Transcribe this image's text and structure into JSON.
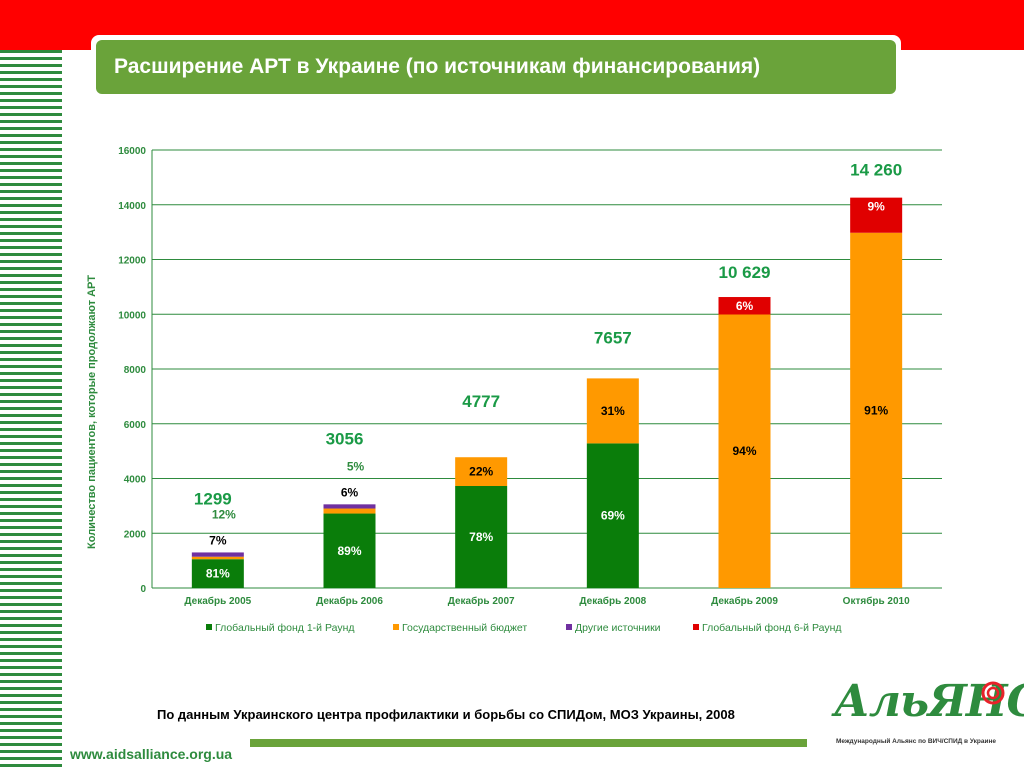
{
  "slide": {
    "title": "Расширение АРТ в Украине (по источникам финансирования)",
    "source": "По данным Украинского центра профилактики и борьбы со СПИДом,  МОЗ Украины, 2008",
    "url": "www.aidsalliance.org.ua",
    "logo_text": "АльЯНС",
    "logo_caption": "Международный Альянс по ВИЧ/СПИД в Украине"
  },
  "colors": {
    "top_bar": "#ff0000",
    "title_bg": "#6aa33a",
    "stripes": "#2e8b3e",
    "axis_text": "#2e8b3e",
    "grid": "#2e8b3e"
  },
  "chart_data": {
    "type": "bar",
    "stacked": true,
    "title": "",
    "ylabel": "Количество пациентов, которые продолжают АРТ",
    "ylim": [
      0,
      16000
    ],
    "yticks": [
      0,
      2000,
      4000,
      6000,
      8000,
      10000,
      12000,
      14000,
      16000
    ],
    "grid": true,
    "legend_position": "bottom",
    "categories": [
      "Декабрь 2005",
      "Декабрь 2006",
      "Декабрь 2007",
      "Декабрь 2008",
      "Декабрь 2009",
      "Октябрь 2010"
    ],
    "totals": [
      "1299",
      "3056",
      "4777",
      "7657",
      "10 629",
      "14 260"
    ],
    "series": [
      {
        "name": "Глобальный фонд 1-й Раунд",
        "color": "#0a7d0a",
        "values": [
          1052,
          2720,
          3726,
          5283,
          0,
          0
        ],
        "labels": [
          "81%",
          "89%",
          "78%",
          "69%",
          "",
          ""
        ]
      },
      {
        "name": "Государственный бюджет",
        "color": "#ff9900",
        "values": [
          91,
          183,
          1051,
          2374,
          9991,
          12977
        ],
        "labels": [
          "7%",
          "6%",
          "22%",
          "31%",
          "94%",
          "91%"
        ]
      },
      {
        "name": "Другие источники",
        "color": "#7030a0",
        "values": [
          156,
          153,
          0,
          0,
          0,
          0
        ],
        "labels": [
          "12%",
          "5%",
          "",
          "",
          "",
          ""
        ]
      },
      {
        "name": "Глобальный фонд 6-й Раунд",
        "color": "#e00000",
        "values": [
          0,
          0,
          0,
          0,
          638,
          1283
        ],
        "labels": [
          "",
          "",
          "",
          "",
          "6%",
          "9%"
        ]
      }
    ]
  }
}
